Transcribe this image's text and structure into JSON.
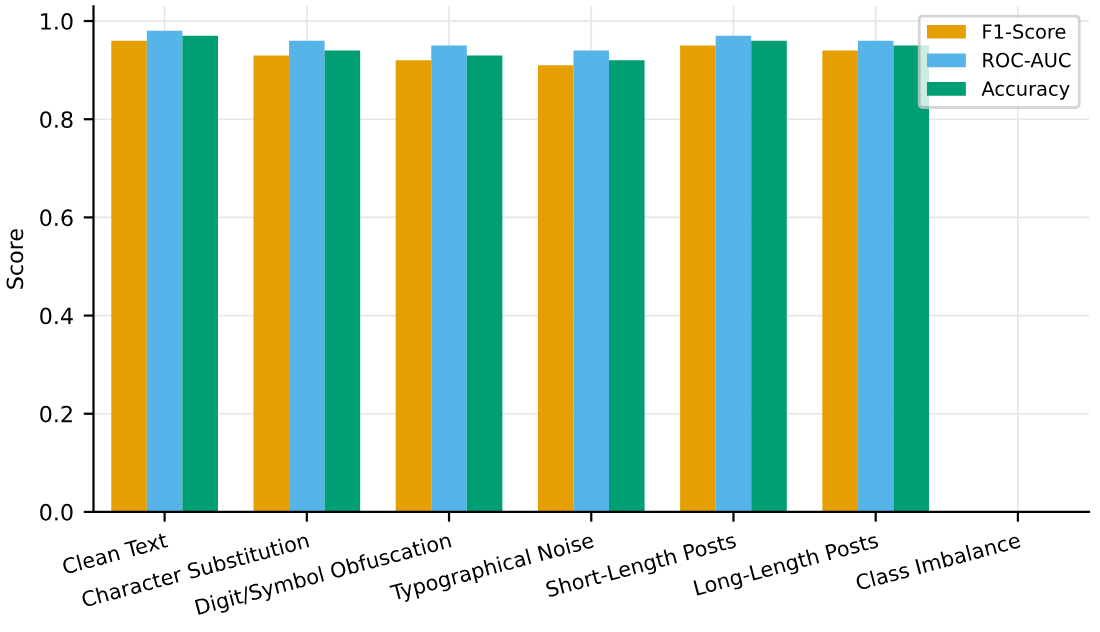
{
  "chart_data": {
    "type": "bar",
    "ylabel": "Score",
    "categories": [
      "Clean Text",
      "Character Substitution",
      "Digit/Symbol Obfuscation",
      "Typographical Noise",
      "Short-Length Posts",
      "Long-Length Posts",
      "Class Imbalance"
    ],
    "series": [
      {
        "name": "F1-Score",
        "color": "#e69f00",
        "values": [
          0.96,
          0.93,
          0.92,
          0.91,
          0.95,
          0.94,
          null
        ]
      },
      {
        "name": "ROC-AUC",
        "color": "#56b4e9",
        "values": [
          0.98,
          0.96,
          0.95,
          0.94,
          0.97,
          0.96,
          null
        ]
      },
      {
        "name": "Accuracy",
        "color": "#009e73",
        "values": [
          0.97,
          0.94,
          0.93,
          0.92,
          0.96,
          0.95,
          null
        ]
      }
    ],
    "ylim": [
      0,
      1.03
    ],
    "yticks": [
      {
        "value": 0.0,
        "label": "0.0"
      },
      {
        "value": 0.2,
        "label": "0.2"
      },
      {
        "value": 0.4,
        "label": "0.4"
      },
      {
        "value": 0.6,
        "label": "0.6"
      },
      {
        "value": 0.8,
        "label": "0.8"
      },
      {
        "value": 1.0,
        "label": "1.0"
      }
    ],
    "grid": true,
    "legend": "top right"
  }
}
